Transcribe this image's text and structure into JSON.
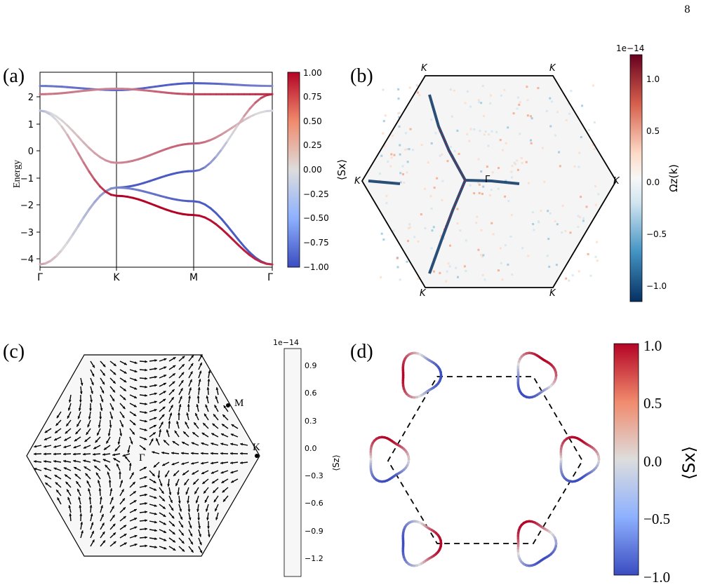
{
  "page": {
    "number": "8"
  },
  "panels": {
    "a": {
      "label": "(a)",
      "ylabel": "Energy",
      "xticks": [
        "Γ",
        "K",
        "M",
        "Γ"
      ],
      "colorbar_label": "⟨Sx⟩",
      "colorbar_ticks": [
        "1.00",
        "0.75",
        "0.50",
        "0.25",
        "0.00",
        "−0.25",
        "−0.50",
        "−0.75",
        "−1.00"
      ]
    },
    "b": {
      "label": "(b)",
      "corner_labels": [
        "K",
        "K",
        "K",
        "K",
        "K",
        "K"
      ],
      "center_label": "Γ",
      "colorbar_label": "Ωz(k)",
      "colorbar_exponent": "1e−14",
      "colorbar_ticks": [
        "1.0",
        "0.5",
        "0.0",
        "−0.5",
        "−1.0"
      ]
    },
    "c": {
      "label": "(c)",
      "point_labels": [
        "M",
        "K",
        "Γ"
      ],
      "colorbar_label": "⟨Sz⟩",
      "colorbar_exponent": "1e−14",
      "colorbar_ticks": [
        "0.9",
        "0.6",
        "0.3",
        "0.0",
        "−0.3",
        "−0.6",
        "−0.9",
        "−1.2"
      ]
    },
    "d": {
      "label": "(d)",
      "colorbar_label": "⟨Sx⟩",
      "colorbar_ticks": [
        "1.0",
        "0.5",
        "0.0",
        "−0.5",
        "−1.0"
      ]
    }
  },
  "chart_data": [
    {
      "type": "line",
      "panel": "a",
      "xlabel": "",
      "ylabel": "Energy",
      "ylim": [
        -4.2,
        2.9
      ],
      "yticks": [
        2,
        1,
        0,
        -1,
        -2,
        -3,
        -4
      ],
      "x_ticks": [
        "Γ",
        "K",
        "M",
        "Γ"
      ],
      "series": [
        {
          "values": [
            [
              0,
              2.4
            ],
            [
              1,
              2.25
            ],
            [
              2,
              2.5
            ],
            [
              3,
              2.4
            ]
          ],
          "sx": [
            -0.7,
            -0.8,
            -0.9,
            -0.6
          ]
        },
        {
          "values": [
            [
              0,
              2.1
            ],
            [
              1,
              2.3
            ],
            [
              2,
              2.1
            ],
            [
              3,
              2.1
            ]
          ],
          "sx": [
            0.5,
            0.4,
            0.7,
            0.8
          ]
        },
        {
          "values": [
            [
              0,
              1.5
            ],
            [
              1,
              -0.4
            ],
            [
              2,
              0.3
            ],
            [
              3,
              1.5
            ]
          ],
          "sx": [
            -0.1,
            0.4,
            0.6,
            -0.1
          ]
        },
        {
          "values": [
            [
              0,
              -4.1
            ],
            [
              1,
              -1.3
            ],
            [
              2,
              -0.7
            ],
            [
              3,
              2.1
            ]
          ],
          "sx": [
            -0.5,
            -0.9,
            -0.9,
            0.9
          ]
        },
        {
          "values": [
            [
              0,
              -4.1
            ],
            [
              1,
              -1.3
            ],
            [
              2,
              -1.8
            ],
            [
              3,
              -4.1
            ]
          ],
          "sx": [
            0.3,
            -0.6,
            -0.9,
            -0.9
          ]
        },
        {
          "values": [
            [
              0,
              1.5
            ],
            [
              1,
              -1.6
            ],
            [
              2,
              -2.3
            ],
            [
              3,
              -4.1
            ]
          ],
          "sx": [
            -0.3,
            1.0,
            1.0,
            0.8
          ]
        }
      ]
    },
    {
      "type": "heatmap",
      "panel": "b",
      "colorbar_range": [
        -1.2,
        1.2
      ],
      "colorbar_scale": "1e-14"
    },
    {
      "type": "scatter",
      "panel": "c",
      "description_points": [
        "M",
        "K",
        "Γ"
      ],
      "colorbar_range": [
        -1.3,
        1.0
      ],
      "colorbar_scale": "1e-14"
    },
    {
      "type": "line",
      "panel": "d",
      "colorbar_range": [
        -1.0,
        1.0
      ]
    }
  ],
  "colors": {
    "red": "#b40426",
    "blue": "#3b4cc0",
    "white": "#dddddd",
    "dark_red": "#67001f",
    "dark_blue": "#053061"
  }
}
